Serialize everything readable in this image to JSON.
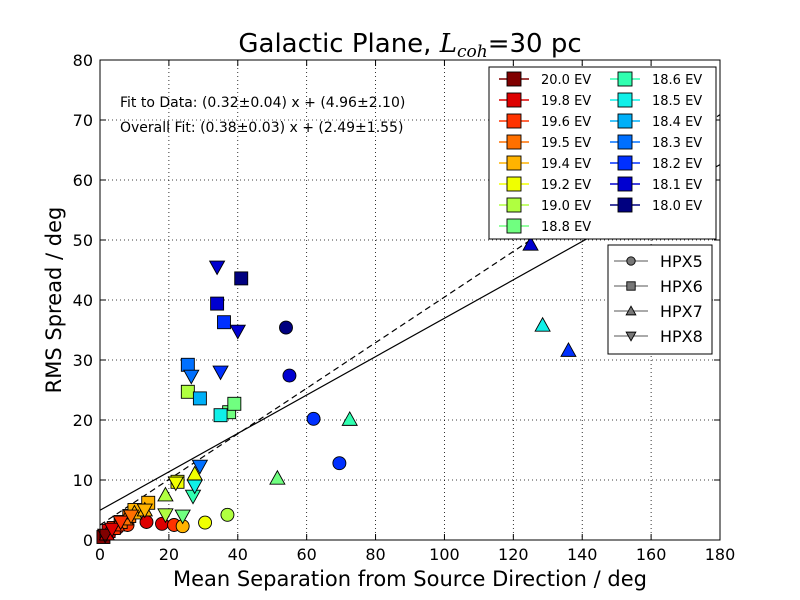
{
  "chart_data": {
    "type": "scatter",
    "title_prefix": "Galactic Plane, ",
    "title_symbol": "L",
    "title_subscript": "coh",
    "title_suffix": "=30 pc",
    "xlabel": "Mean Separation from Source Direction / deg",
    "ylabel": "RMS Spread / deg",
    "xlim": [
      0,
      180
    ],
    "ylim": [
      0,
      80
    ],
    "xticks": [
      "0",
      "20",
      "40",
      "60",
      "80",
      "100",
      "120",
      "140",
      "160",
      "180"
    ],
    "yticks": [
      "0",
      "10",
      "20",
      "30",
      "40",
      "50",
      "60",
      "70",
      "80"
    ],
    "grid": true,
    "annotations": [
      "Fit to Data: (0.32±0.04) x + (4.96±2.10)",
      "Overall Fit: (0.38±0.03) x + (2.49±1.55)"
    ],
    "fit_lines": [
      {
        "name": "Fit to Data",
        "slope": 0.32,
        "intercept": 4.96,
        "style": "solid"
      },
      {
        "name": "Overall Fit",
        "slope": 0.38,
        "intercept": 2.49,
        "style": "dashed"
      }
    ],
    "energies": [
      {
        "label": "20.0 EV",
        "color": "#800000"
      },
      {
        "label": "19.8 EV",
        "color": "#dd0000"
      },
      {
        "label": "19.6 EV",
        "color": "#ff3300"
      },
      {
        "label": "19.5 EV",
        "color": "#ff7000"
      },
      {
        "label": "19.4 EV",
        "color": "#ffb300"
      },
      {
        "label": "19.2 EV",
        "color": "#f0ff00"
      },
      {
        "label": "19.0 EV",
        "color": "#b0ff40"
      },
      {
        "label": "18.8 EV",
        "color": "#70ff80"
      },
      {
        "label": "18.6 EV",
        "color": "#30ffb0"
      },
      {
        "label": "18.5 EV",
        "color": "#10f0e8"
      },
      {
        "label": "18.4 EV",
        "color": "#00b0f8"
      },
      {
        "label": "18.3 EV",
        "color": "#0070ff"
      },
      {
        "label": "18.2 EV",
        "color": "#0030ff"
      },
      {
        "label": "18.1 EV",
        "color": "#0000d0"
      },
      {
        "label": "18.0 EV",
        "color": "#000080"
      }
    ],
    "resolutions": [
      {
        "label": "HPX5",
        "marker": "circle"
      },
      {
        "label": "HPX6",
        "marker": "square"
      },
      {
        "label": "HPX7",
        "marker": "triangle-up"
      },
      {
        "label": "HPX8",
        "marker": "triangle-down"
      }
    ],
    "points": [
      {
        "x": 2,
        "y": 1,
        "e": 0,
        "m": 0
      },
      {
        "x": 3,
        "y": 1.5,
        "e": 1,
        "m": 0
      },
      {
        "x": 5,
        "y": 2,
        "e": 1,
        "m": 0
      },
      {
        "x": 8,
        "y": 2.5,
        "e": 2,
        "m": 0
      },
      {
        "x": 13.5,
        "y": 3,
        "e": 1,
        "m": 0
      },
      {
        "x": 18,
        "y": 2.7,
        "e": 1,
        "m": 0
      },
      {
        "x": 21.5,
        "y": 2.5,
        "e": 2,
        "m": 0
      },
      {
        "x": 24,
        "y": 2.3,
        "e": 4,
        "m": 0
      },
      {
        "x": 30.5,
        "y": 2.9,
        "e": 5,
        "m": 0
      },
      {
        "x": 37,
        "y": 4.2,
        "e": 6,
        "m": 0
      },
      {
        "x": 54,
        "y": 35.4,
        "e": 14,
        "m": 0
      },
      {
        "x": 55,
        "y": 27.4,
        "e": 13,
        "m": 0
      },
      {
        "x": 62,
        "y": 20.2,
        "e": 12,
        "m": 0
      },
      {
        "x": 69.5,
        "y": 12.8,
        "e": 12,
        "m": 0
      },
      {
        "x": 1,
        "y": 0.5,
        "e": 0,
        "m": 1
      },
      {
        "x": 2.5,
        "y": 1.5,
        "e": 1,
        "m": 1
      },
      {
        "x": 4,
        "y": 2,
        "e": 2,
        "m": 1
      },
      {
        "x": 6,
        "y": 3,
        "e": 3,
        "m": 1
      },
      {
        "x": 8.5,
        "y": 4,
        "e": 3,
        "m": 1
      },
      {
        "x": 10,
        "y": 5,
        "e": 4,
        "m": 1
      },
      {
        "x": 14,
        "y": 6.2,
        "e": 4,
        "m": 1
      },
      {
        "x": 22.5,
        "y": 9.7,
        "e": 5,
        "m": 1
      },
      {
        "x": 25.5,
        "y": 24.7,
        "e": 6,
        "m": 1
      },
      {
        "x": 37.5,
        "y": 21.3,
        "e": 7,
        "m": 1
      },
      {
        "x": 39,
        "y": 22.7,
        "e": 7,
        "m": 1
      },
      {
        "x": 35,
        "y": 20.8,
        "e": 9,
        "m": 1
      },
      {
        "x": 29,
        "y": 23.6,
        "e": 10,
        "m": 1
      },
      {
        "x": 25.5,
        "y": 29.2,
        "e": 11,
        "m": 1
      },
      {
        "x": 36,
        "y": 36.3,
        "e": 12,
        "m": 1
      },
      {
        "x": 34,
        "y": 39.4,
        "e": 13,
        "m": 1
      },
      {
        "x": 41,
        "y": 43.6,
        "e": 14,
        "m": 1
      },
      {
        "x": 2,
        "y": 1,
        "e": 1,
        "m": 2
      },
      {
        "x": 5,
        "y": 2.5,
        "e": 2,
        "m": 2
      },
      {
        "x": 7.5,
        "y": 3.5,
        "e": 3,
        "m": 2
      },
      {
        "x": 10,
        "y": 4.5,
        "e": 4,
        "m": 2
      },
      {
        "x": 13,
        "y": 5,
        "e": 4,
        "m": 2
      },
      {
        "x": 19,
        "y": 7.5,
        "e": 6,
        "m": 2
      },
      {
        "x": 27.5,
        "y": 11,
        "e": 5,
        "m": 2
      },
      {
        "x": 51.5,
        "y": 10.3,
        "e": 7,
        "m": 2
      },
      {
        "x": 72.5,
        "y": 20.1,
        "e": 8,
        "m": 2
      },
      {
        "x": 128.5,
        "y": 35.8,
        "e": 9,
        "m": 2
      },
      {
        "x": 136,
        "y": 31.6,
        "e": 12,
        "m": 2
      },
      {
        "x": 125,
        "y": 49.3,
        "e": 13,
        "m": 2
      },
      {
        "x": 1.5,
        "y": 0.8,
        "e": 0,
        "m": 3
      },
      {
        "x": 3.5,
        "y": 1.8,
        "e": 1,
        "m": 3
      },
      {
        "x": 6,
        "y": 3,
        "e": 2,
        "m": 3
      },
      {
        "x": 9,
        "y": 4,
        "e": 3,
        "m": 3
      },
      {
        "x": 13,
        "y": 5,
        "e": 4,
        "m": 3
      },
      {
        "x": 22,
        "y": 9.5,
        "e": 5,
        "m": 3
      },
      {
        "x": 19,
        "y": 4.2,
        "e": 6,
        "m": 3
      },
      {
        "x": 24,
        "y": 4,
        "e": 7,
        "m": 3
      },
      {
        "x": 27,
        "y": 7.3,
        "e": 8,
        "m": 3
      },
      {
        "x": 27.5,
        "y": 9,
        "e": 9,
        "m": 3
      },
      {
        "x": 29,
        "y": 12.3,
        "e": 11,
        "m": 3
      },
      {
        "x": 26.5,
        "y": 27.3,
        "e": 11,
        "m": 3
      },
      {
        "x": 35,
        "y": 28,
        "e": 12,
        "m": 3
      },
      {
        "x": 40,
        "y": 34.8,
        "e": 13,
        "m": 3
      },
      {
        "x": 34,
        "y": 45.5,
        "e": 13,
        "m": 3
      }
    ]
  }
}
